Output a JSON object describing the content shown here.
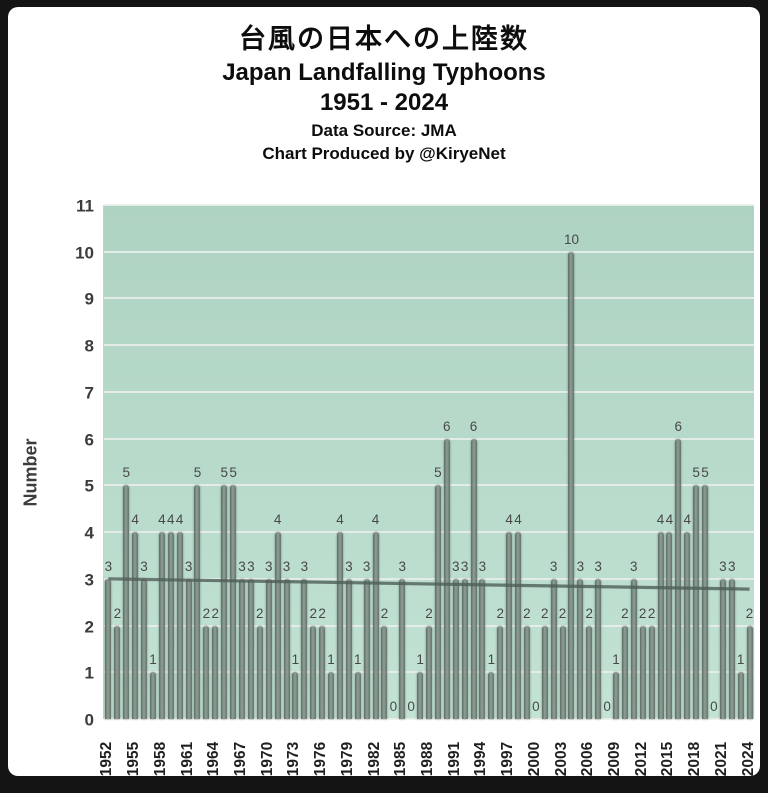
{
  "title": {
    "jp": "台風の日本への上陸数",
    "en": "Japan Landfalling Typhoons",
    "range": "1951 - 2024",
    "source": "Data Source: JMA",
    "credit": "Chart Produced by @KiryeNet"
  },
  "y_axis_title": "Number",
  "chart_data": {
    "type": "bar",
    "title": "台風の日本への上陸数 — Japan Landfalling Typhoons 1951 - 2024",
    "xlabel": "",
    "ylabel": "Number",
    "ylim": [
      0,
      11
    ],
    "grid": true,
    "legend": "none",
    "data_labels_shown": true,
    "categories": [
      1952,
      1953,
      1954,
      1955,
      1956,
      1957,
      1958,
      1959,
      1960,
      1961,
      1962,
      1963,
      1964,
      1965,
      1966,
      1967,
      1968,
      1969,
      1970,
      1971,
      1972,
      1973,
      1974,
      1975,
      1976,
      1977,
      1978,
      1979,
      1980,
      1981,
      1982,
      1983,
      1984,
      1985,
      1986,
      1987,
      1988,
      1989,
      1990,
      1991,
      1992,
      1993,
      1994,
      1995,
      1996,
      1997,
      1998,
      1999,
      2000,
      2001,
      2002,
      2003,
      2004,
      2005,
      2006,
      2007,
      2008,
      2009,
      2010,
      2011,
      2012,
      2013,
      2014,
      2015,
      2016,
      2017,
      2018,
      2019,
      2020,
      2021,
      2022,
      2023,
      2024
    ],
    "values": [
      3,
      2,
      5,
      4,
      3,
      1,
      4,
      4,
      4,
      3,
      5,
      2,
      2,
      5,
      5,
      3,
      3,
      2,
      3,
      4,
      3,
      1,
      3,
      2,
      2,
      1,
      4,
      3,
      1,
      3,
      4,
      2,
      0,
      3,
      0,
      1,
      2,
      5,
      6,
      3,
      3,
      6,
      3,
      1,
      2,
      4,
      4,
      2,
      0,
      2,
      3,
      2,
      10,
      3,
      2,
      3,
      0,
      1,
      2,
      3,
      2,
      2,
      4,
      4,
      6,
      4,
      5,
      5,
      0,
      3,
      3,
      1,
      2
    ],
    "y_tick_labels": [
      "0",
      "1",
      "2",
      "3",
      "4",
      "5",
      "6",
      "7",
      "8",
      "9",
      "10",
      "11"
    ],
    "x_tick_interval": 3,
    "x_tick_labels": [
      "1952",
      "1955",
      "1958",
      "1961",
      "1964",
      "1967",
      "1970",
      "1973",
      "1976",
      "1979",
      "1982",
      "1985",
      "1988",
      "1991",
      "1994",
      "1997",
      "2000",
      "2003",
      "2006",
      "2009",
      "2012",
      "2015",
      "2018",
      "2021",
      "2024"
    ],
    "trendline": {
      "start_value": 3.0,
      "end_value": 2.78
    },
    "colors": {
      "plot_background_top": "#afd3c3",
      "plot_background_bottom": "#c3e3d3",
      "bar": "#66796f",
      "gridline": "#eceeec",
      "trendline": "#4e5e58",
      "data_label": "#484848",
      "axis_text": "#3c3c3c",
      "title_text": "#0d0d0d",
      "frame": "#141414",
      "card": "#ffffff"
    }
  }
}
